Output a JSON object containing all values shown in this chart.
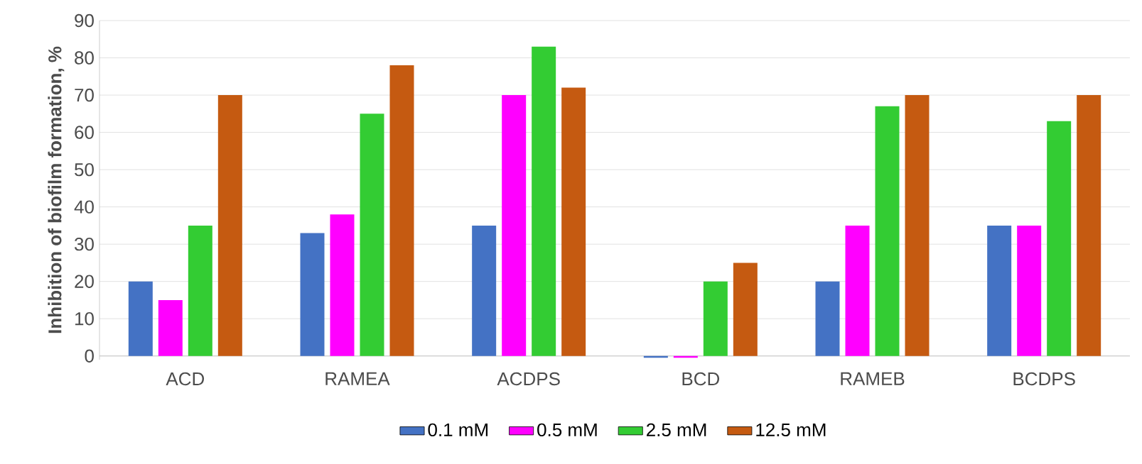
{
  "chart_data": {
    "type": "bar",
    "ylabel": "Inhibition of biofilm formation, %",
    "categories": [
      "ACD",
      "RAMEA",
      "ACDPS",
      "BCD",
      "RAMEB",
      "BCDPS"
    ],
    "series": [
      {
        "name": "0.1 mM",
        "color": "#4472c4",
        "values": [
          20,
          33,
          35,
          -0.5,
          20,
          35
        ]
      },
      {
        "name": "0.5 mM",
        "color": "#ff00ff",
        "values": [
          15,
          38,
          70,
          -0.5,
          35,
          35
        ]
      },
      {
        "name": "2.5 mM",
        "color": "#33cc33",
        "values": [
          35,
          65,
          83,
          20,
          67,
          63
        ]
      },
      {
        "name": "12.5 mM",
        "color": "#c55a11",
        "values": [
          70,
          78,
          72,
          25,
          70,
          70
        ]
      }
    ],
    "ylim": [
      -1,
      90
    ],
    "yticks": [
      0,
      10,
      20,
      30,
      40,
      50,
      60,
      70,
      80,
      90
    ],
    "grid": "y",
    "legend": "bottom"
  }
}
